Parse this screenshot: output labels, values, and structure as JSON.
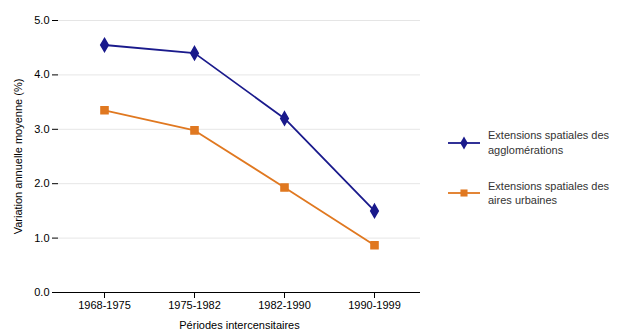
{
  "chart_data": {
    "type": "line",
    "categories": [
      "1968-1975",
      "1975-1982",
      "1982-1990",
      "1990-1999"
    ],
    "series": [
      {
        "name": "Extensions spatiales des\nagglomérations",
        "color": "#1a1a8c",
        "marker": "diamond",
        "values": [
          4.55,
          4.4,
          3.2,
          1.5
        ]
      },
      {
        "name": "Extensions spatiales des\naires urbaines",
        "color": "#e07820",
        "marker": "square",
        "values": [
          3.35,
          2.98,
          1.93,
          0.87
        ]
      }
    ],
    "xlabel": "Périodes intercensitaires",
    "ylabel": "Variation annuelle moyenne (%)",
    "ylim": [
      0,
      5
    ],
    "yticks": [
      0,
      1,
      2,
      3,
      4,
      5
    ],
    "grid": true,
    "legend": "right"
  }
}
